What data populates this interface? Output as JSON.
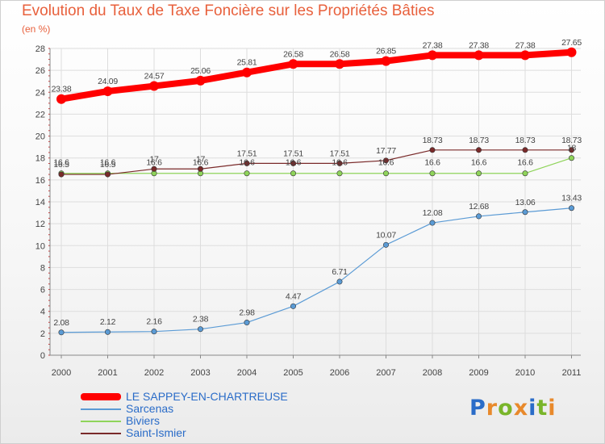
{
  "title": "Evolution du Taux de Taxe Foncière sur les Propriétés Bâties",
  "unit_label": "(en %)",
  "logo": {
    "letters": [
      "P",
      "r",
      "o",
      "x",
      "i",
      "t",
      "i"
    ],
    "colors": [
      "#2a6cc8",
      "#e8892b",
      "#79b52a",
      "#e8892b",
      "#2a6cc8",
      "#79b52a",
      "#e8892b"
    ]
  },
  "colors": {
    "title": "#e8603c",
    "frame": "#cfcfcf",
    "grid": "#dddddd"
  },
  "chart_data": {
    "type": "line",
    "x": [
      "2000",
      "2001",
      "2002",
      "2003",
      "2004",
      "2005",
      "2006",
      "2007",
      "2008",
      "2009",
      "2010",
      "2011"
    ],
    "ylim": [
      0,
      28
    ],
    "yticks": [
      "0",
      "2",
      "4",
      "6",
      "8",
      "10",
      "12",
      "14",
      "16",
      "18",
      "20",
      "22",
      "24",
      "26",
      "28"
    ],
    "grid": true,
    "legend_position": "bottom-left",
    "series": [
      {
        "name": "LE SAPPEY-EN-CHARTREUSE",
        "color": "#ff0000",
        "values": [
          23.38,
          24.09,
          24.57,
          25.06,
          25.81,
          26.58,
          26.58,
          26.85,
          27.38,
          27.38,
          27.38,
          27.65
        ],
        "labels": [
          "23.38",
          "24.09",
          "24.57",
          "25.06",
          "25.81",
          "26.58",
          "26.58",
          "26.85",
          "27.38",
          "27.38",
          "27.38",
          "27.65"
        ]
      },
      {
        "name": "Sarcenas",
        "color": "#5b9bd5",
        "values": [
          2.08,
          2.12,
          2.16,
          2.38,
          2.98,
          4.47,
          6.71,
          10.07,
          12.08,
          12.68,
          13.06,
          13.43
        ],
        "labels": [
          "2.08",
          "2.12",
          "2.16",
          "2.38",
          "2.98",
          "4.47",
          "6.71",
          "10.07",
          "12.08",
          "12.68",
          "13.06",
          "13.43"
        ]
      },
      {
        "name": "Biviers",
        "color": "#8fd45a",
        "values": [
          16.6,
          16.6,
          16.6,
          16.6,
          16.6,
          16.6,
          16.6,
          16.6,
          16.6,
          16.6,
          16.6,
          18
        ],
        "labels": [
          "16.6",
          "16.6",
          "16.6",
          "16.6",
          "16.6",
          "16.6",
          "16.6",
          "16.6",
          "16.6",
          "16.6",
          "16.6",
          "18"
        ]
      },
      {
        "name": "Saint-Ismier",
        "color": "#7a2a2a",
        "values": [
          16.5,
          16.5,
          17,
          17,
          17.51,
          17.51,
          17.51,
          17.77,
          18.73,
          18.73,
          18.73,
          18.73
        ],
        "labels": [
          "16.5",
          "16.5",
          "17",
          "17",
          "17.51",
          "17.51",
          "17.51",
          "17.77",
          "18.73",
          "18.73",
          "18.73",
          "18.73"
        ]
      }
    ]
  }
}
